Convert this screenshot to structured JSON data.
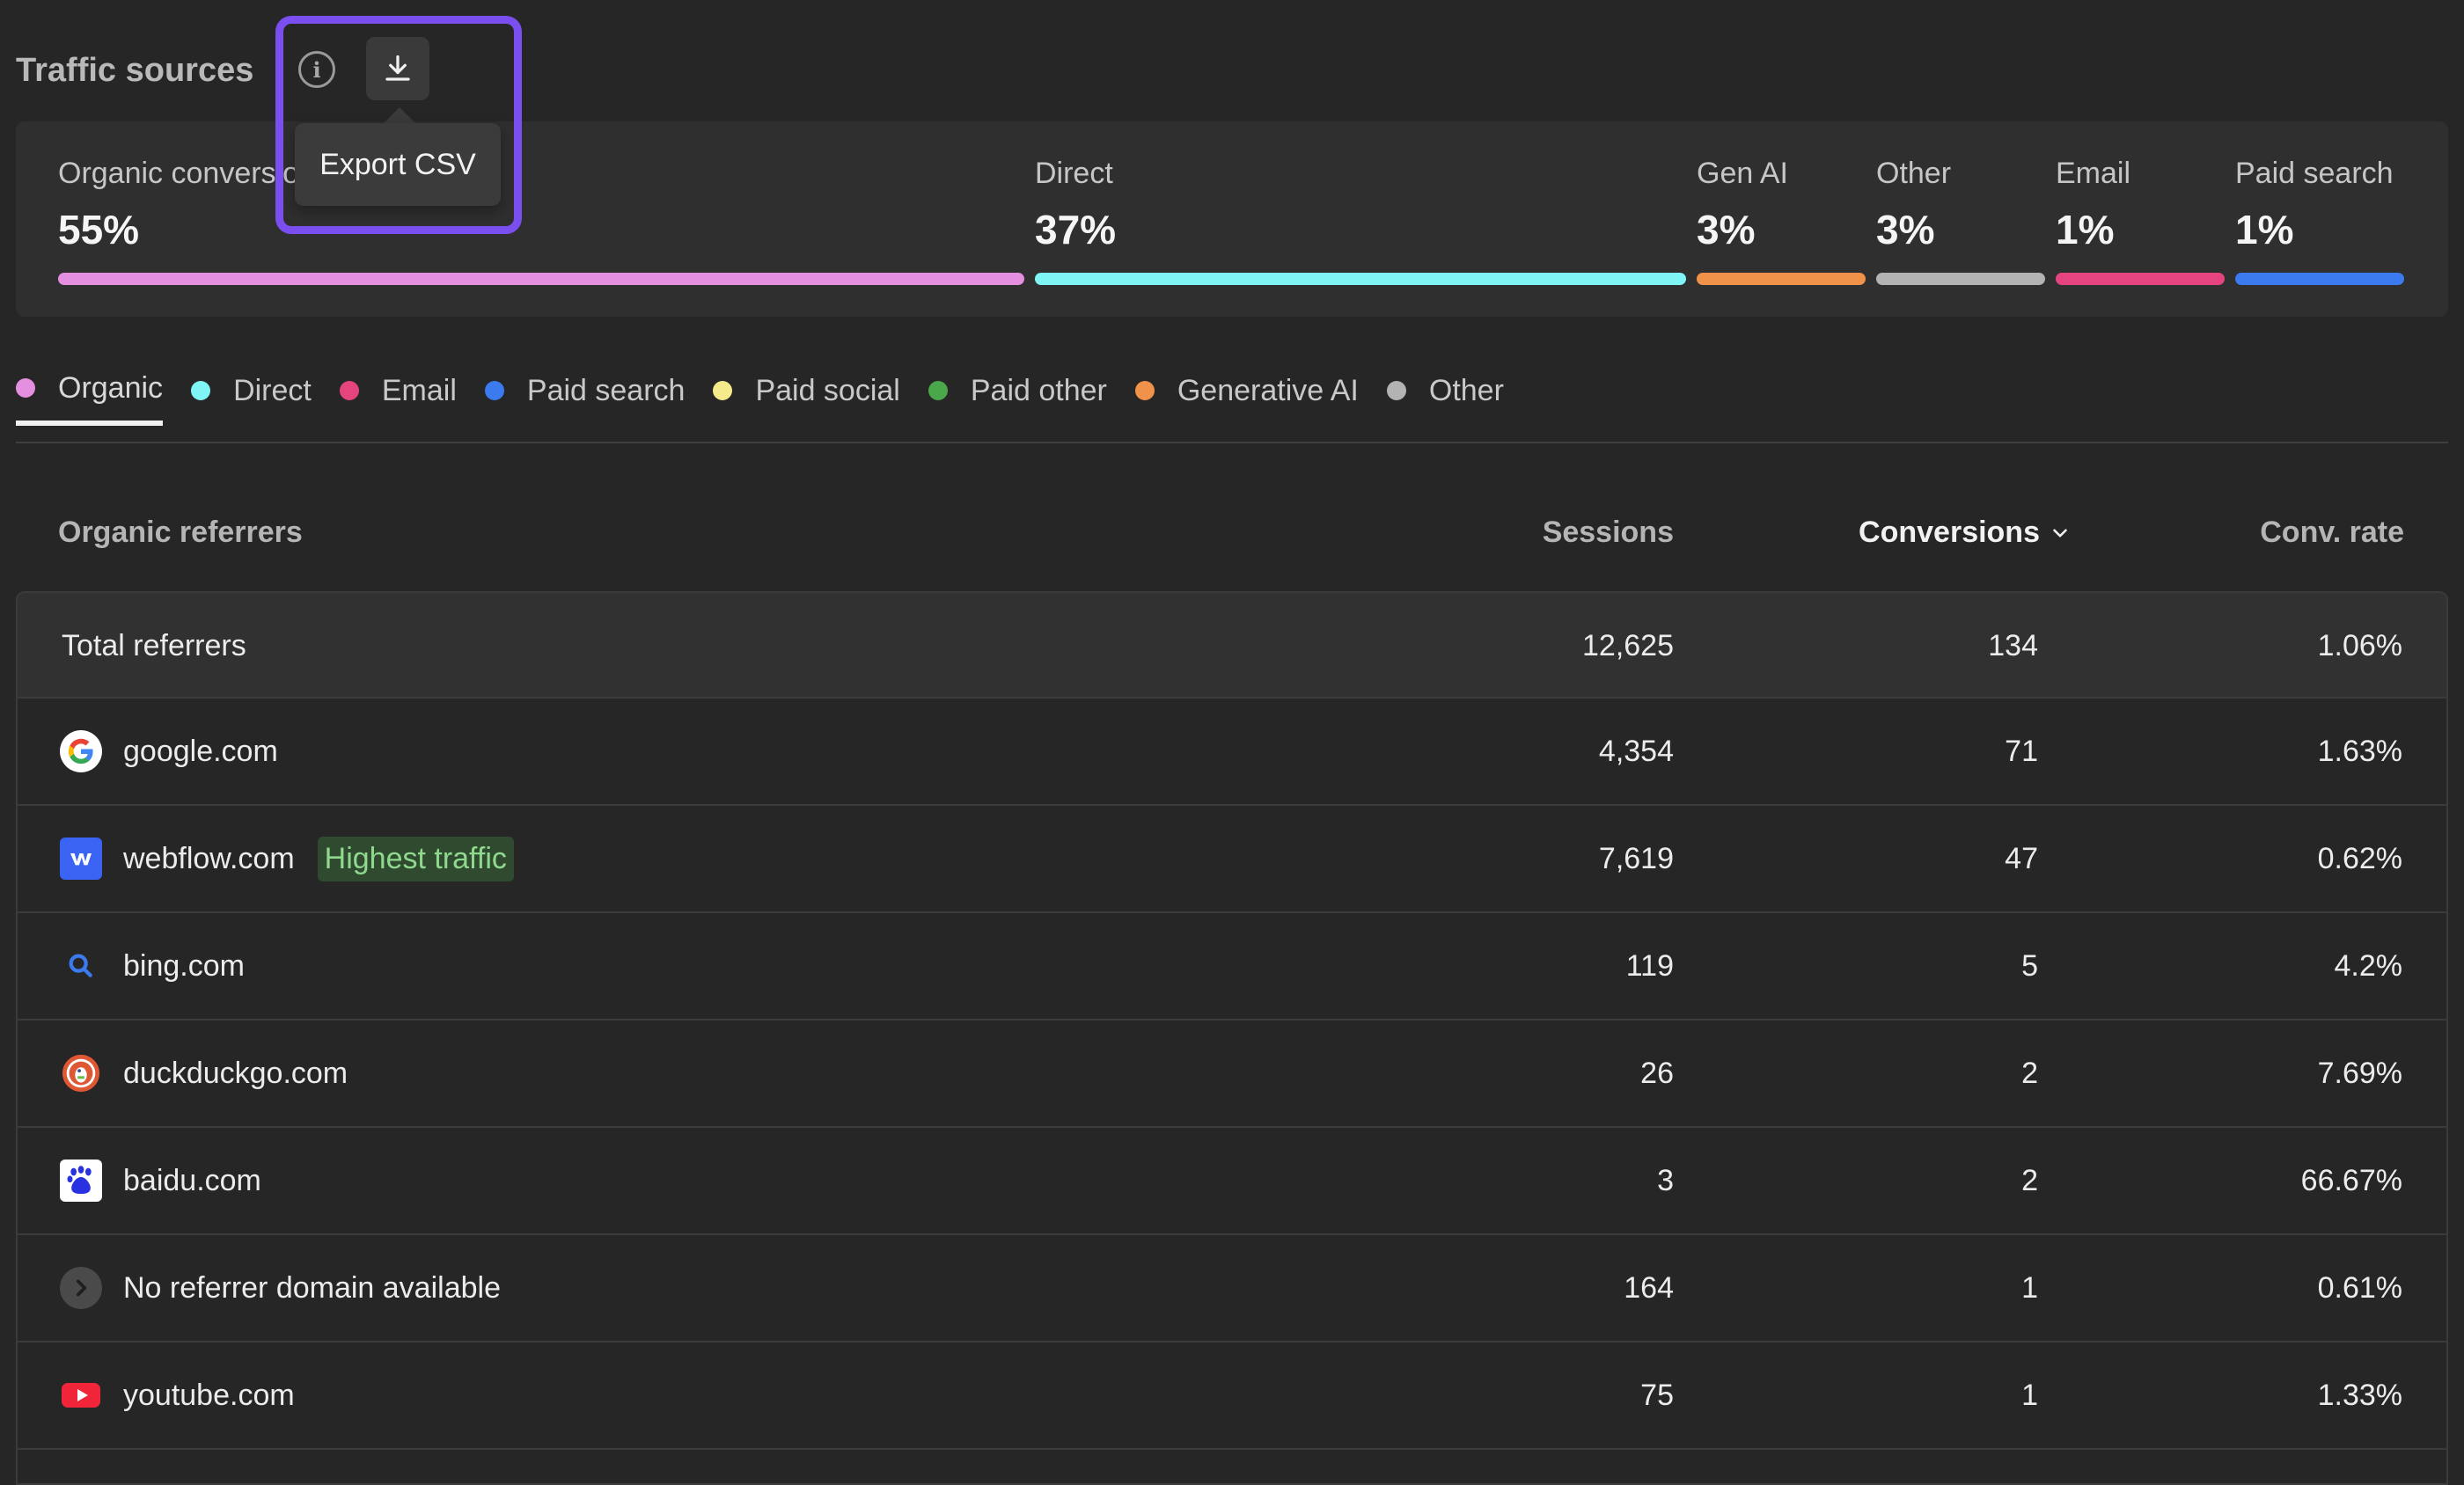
{
  "header": {
    "title": "Traffic sources",
    "export_tooltip": "Export CSV"
  },
  "summary": [
    {
      "label": "Organic conversions",
      "value": "55%",
      "color": "#e58fe0",
      "fraction": 0.55
    },
    {
      "label": "Direct",
      "value": "37%",
      "color": "#7ff5f5",
      "fraction": 0.37
    },
    {
      "label": "Gen AI",
      "value": "3%",
      "color": "#f0924a",
      "fraction": 0.03
    },
    {
      "label": "Other",
      "value": "3%",
      "color": "#b3b3b3",
      "fraction": 0.03
    },
    {
      "label": "Email",
      "value": "1%",
      "color": "#e5447f",
      "fraction": 0.01
    },
    {
      "label": "Paid search",
      "value": "1%",
      "color": "#3b7bef",
      "fraction": 0.01
    }
  ],
  "legend": [
    {
      "label": "Organic",
      "color": "#e58fe0"
    },
    {
      "label": "Direct",
      "color": "#7ff5f5"
    },
    {
      "label": "Email",
      "color": "#e5447f"
    },
    {
      "label": "Paid search",
      "color": "#3b7bef"
    },
    {
      "label": "Paid social",
      "color": "#f5eb8a"
    },
    {
      "label": "Paid other",
      "color": "#4aa84a"
    },
    {
      "label": "Generative AI",
      "color": "#f0924a"
    },
    {
      "label": "Other",
      "color": "#b3b3b3"
    }
  ],
  "table": {
    "headers": {
      "name": "Organic referrers",
      "sessions": "Sessions",
      "conversions": "Conversions",
      "rate": "Conv. rate"
    },
    "total": {
      "name": "Total referrers",
      "sessions": "12,625",
      "conversions": "134",
      "rate": "1.06%"
    },
    "rows": [
      {
        "name": "google.com",
        "icon": "google-icon",
        "sessions": "4,354",
        "conversions": "71",
        "rate": "1.63%"
      },
      {
        "name": "webflow.com",
        "icon": "webflow-icon",
        "badge": "Highest traffic",
        "sessions": "7,619",
        "conversions": "47",
        "rate": "0.62%"
      },
      {
        "name": "bing.com",
        "icon": "bing-search-icon",
        "sessions": "119",
        "conversions": "5",
        "rate": "4.2%"
      },
      {
        "name": "duckduckgo.com",
        "icon": "duckduckgo-icon",
        "sessions": "26",
        "conversions": "2",
        "rate": "7.69%"
      },
      {
        "name": "baidu.com",
        "icon": "baidu-icon",
        "sessions": "3",
        "conversions": "2",
        "rate": "66.67%"
      },
      {
        "name": "No referrer domain available",
        "icon": "chevron-right-icon",
        "sessions": "164",
        "conversions": "1",
        "rate": "0.61%"
      },
      {
        "name": "youtube.com",
        "icon": "youtube-icon",
        "sessions": "75",
        "conversions": "1",
        "rate": "1.33%"
      }
    ]
  }
}
